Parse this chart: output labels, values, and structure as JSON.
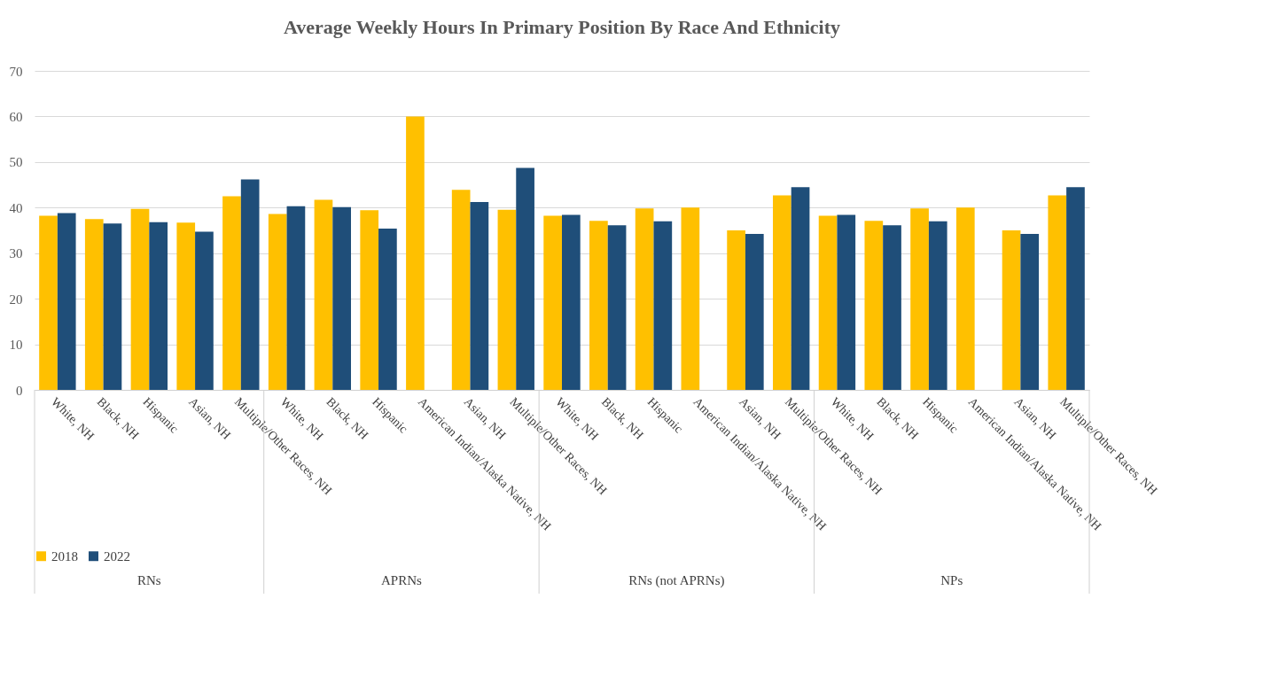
{
  "chart_data": {
    "type": "bar",
    "title": "Average Weekly Hours In Primary Position By Race And Ethnicity",
    "categories": [
      "White, NH",
      "Black, NH",
      "Hispanic",
      "Asian, NH",
      "Multiple/Other Races, NH",
      "White, NH",
      "Black, NH",
      "Hispanic",
      "American Indian/Alaska Native, NH",
      "Asian, NH",
      "Multiple/Other Races, NH",
      "White, NH",
      "Black, NH",
      "Hispanic",
      "American Indian/Alaska Native, NH",
      "Asian, NH",
      "Multiple/Other Races, NH",
      "White, NH",
      "Black, NH",
      "Hispanic",
      "American Indian/Alaska Native, NH",
      "Asian, NH",
      "Multiple/Other Races, NH"
    ],
    "series": [
      {
        "name": "2018",
        "color": "#ffc000",
        "values": [
          38.2,
          37.5,
          39.7,
          36.7,
          42.5,
          38.6,
          41.7,
          39.4,
          60,
          43.9,
          39.5,
          38.2,
          37.1,
          39.8,
          40,
          35,
          42.7,
          38.2,
          37.1,
          39.8,
          40,
          35,
          42.7
        ]
      },
      {
        "name": "2022",
        "color": "#1f4e79",
        "values": [
          38.8,
          36.5,
          36.8,
          34.7,
          46.2,
          40.3,
          40.1,
          35.4,
          null,
          41.2,
          48.7,
          38.4,
          36.1,
          37,
          null,
          34.2,
          44.5,
          38.4,
          36.1,
          37,
          null,
          34.2,
          44.5
        ]
      }
    ],
    "annotations": [
      "RNs",
      "APRNs",
      "RNs (not APRNs)",
      "NPs"
    ],
    "ylim": [
      0,
      70
    ],
    "yticks": [
      0,
      10,
      20,
      30,
      40,
      50,
      60,
      70
    ],
    "grid": "y",
    "legend": "bottom"
  }
}
